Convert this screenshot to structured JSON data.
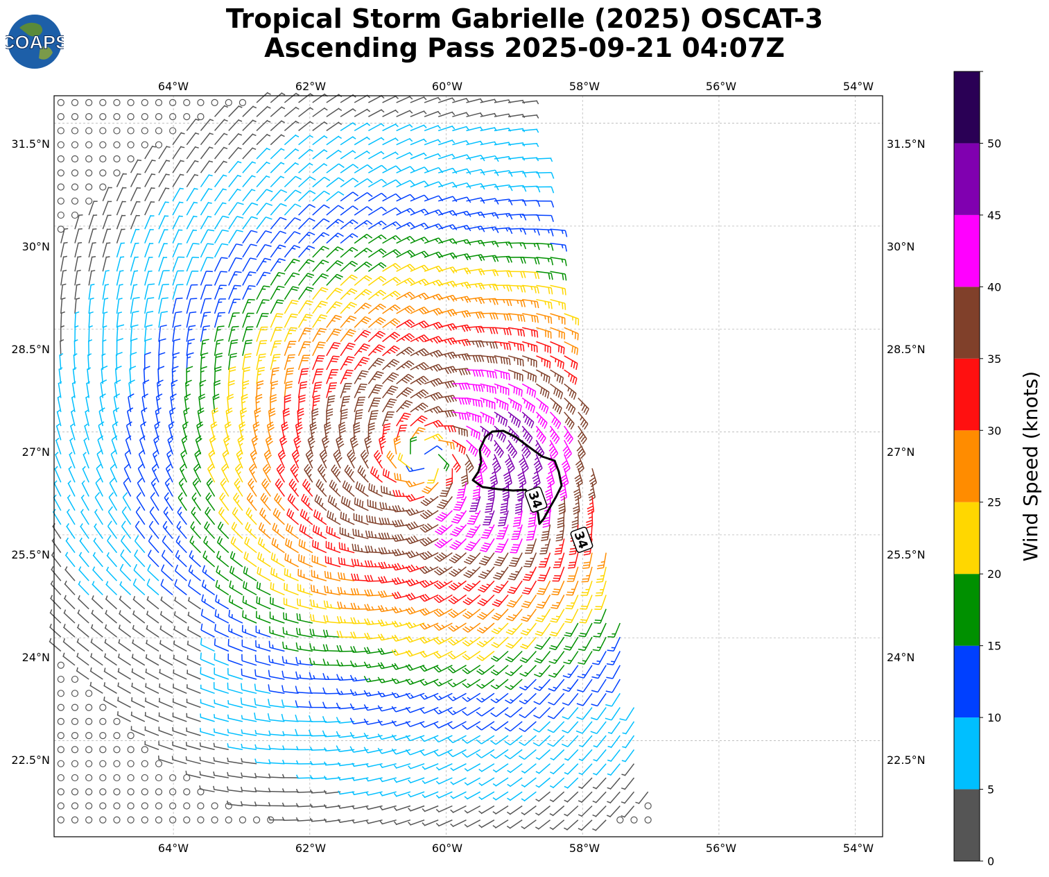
{
  "header": {
    "title_line1": "Tropical Storm Gabrielle (2025) OSCAT-3",
    "title_line2": "Ascending Pass 2025-09-21 04:07Z",
    "logo_text": "COAPS"
  },
  "map": {
    "lon_ticks": [
      "64°W",
      "62°W",
      "60°W",
      "58°W",
      "56°W",
      "54°W"
    ],
    "lat_ticks": [
      "31.5°N",
      "30°N",
      "28.5°N",
      "27°N",
      "25.5°N",
      "24°N",
      "22.5°N"
    ],
    "lon_range": [
      -65.75,
      -53.6
    ],
    "lat_range": [
      21.1,
      31.9
    ],
    "storm_center": {
      "lon": -60.3,
      "lat": 26.6
    },
    "contour_label": "34",
    "contour_labels": [
      "34",
      "34"
    ]
  },
  "colorbar": {
    "label": "Wind Speed (knots)",
    "ticks": [
      "0",
      "5",
      "10",
      "15",
      "20",
      "25",
      "30",
      "35",
      "40",
      "45",
      "50"
    ],
    "bins": [
      {
        "min": 0,
        "max": 5,
        "color": "#555555"
      },
      {
        "min": 5,
        "max": 10,
        "color": "#00bfff"
      },
      {
        "min": 10,
        "max": 15,
        "color": "#0040ff"
      },
      {
        "min": 15,
        "max": 20,
        "color": "#009000"
      },
      {
        "min": 20,
        "max": 25,
        "color": "#ffd700"
      },
      {
        "min": 25,
        "max": 30,
        "color": "#ff8c00"
      },
      {
        "min": 30,
        "max": 35,
        "color": "#ff1010"
      },
      {
        "min": 35,
        "max": 40,
        "color": "#80402a"
      },
      {
        "min": 40,
        "max": 45,
        "color": "#ff00ff"
      },
      {
        "min": 45,
        "max": 50,
        "color": "#8000b0"
      },
      {
        "min": 50,
        "max": 55,
        "color": "#2a0055"
      }
    ]
  }
}
